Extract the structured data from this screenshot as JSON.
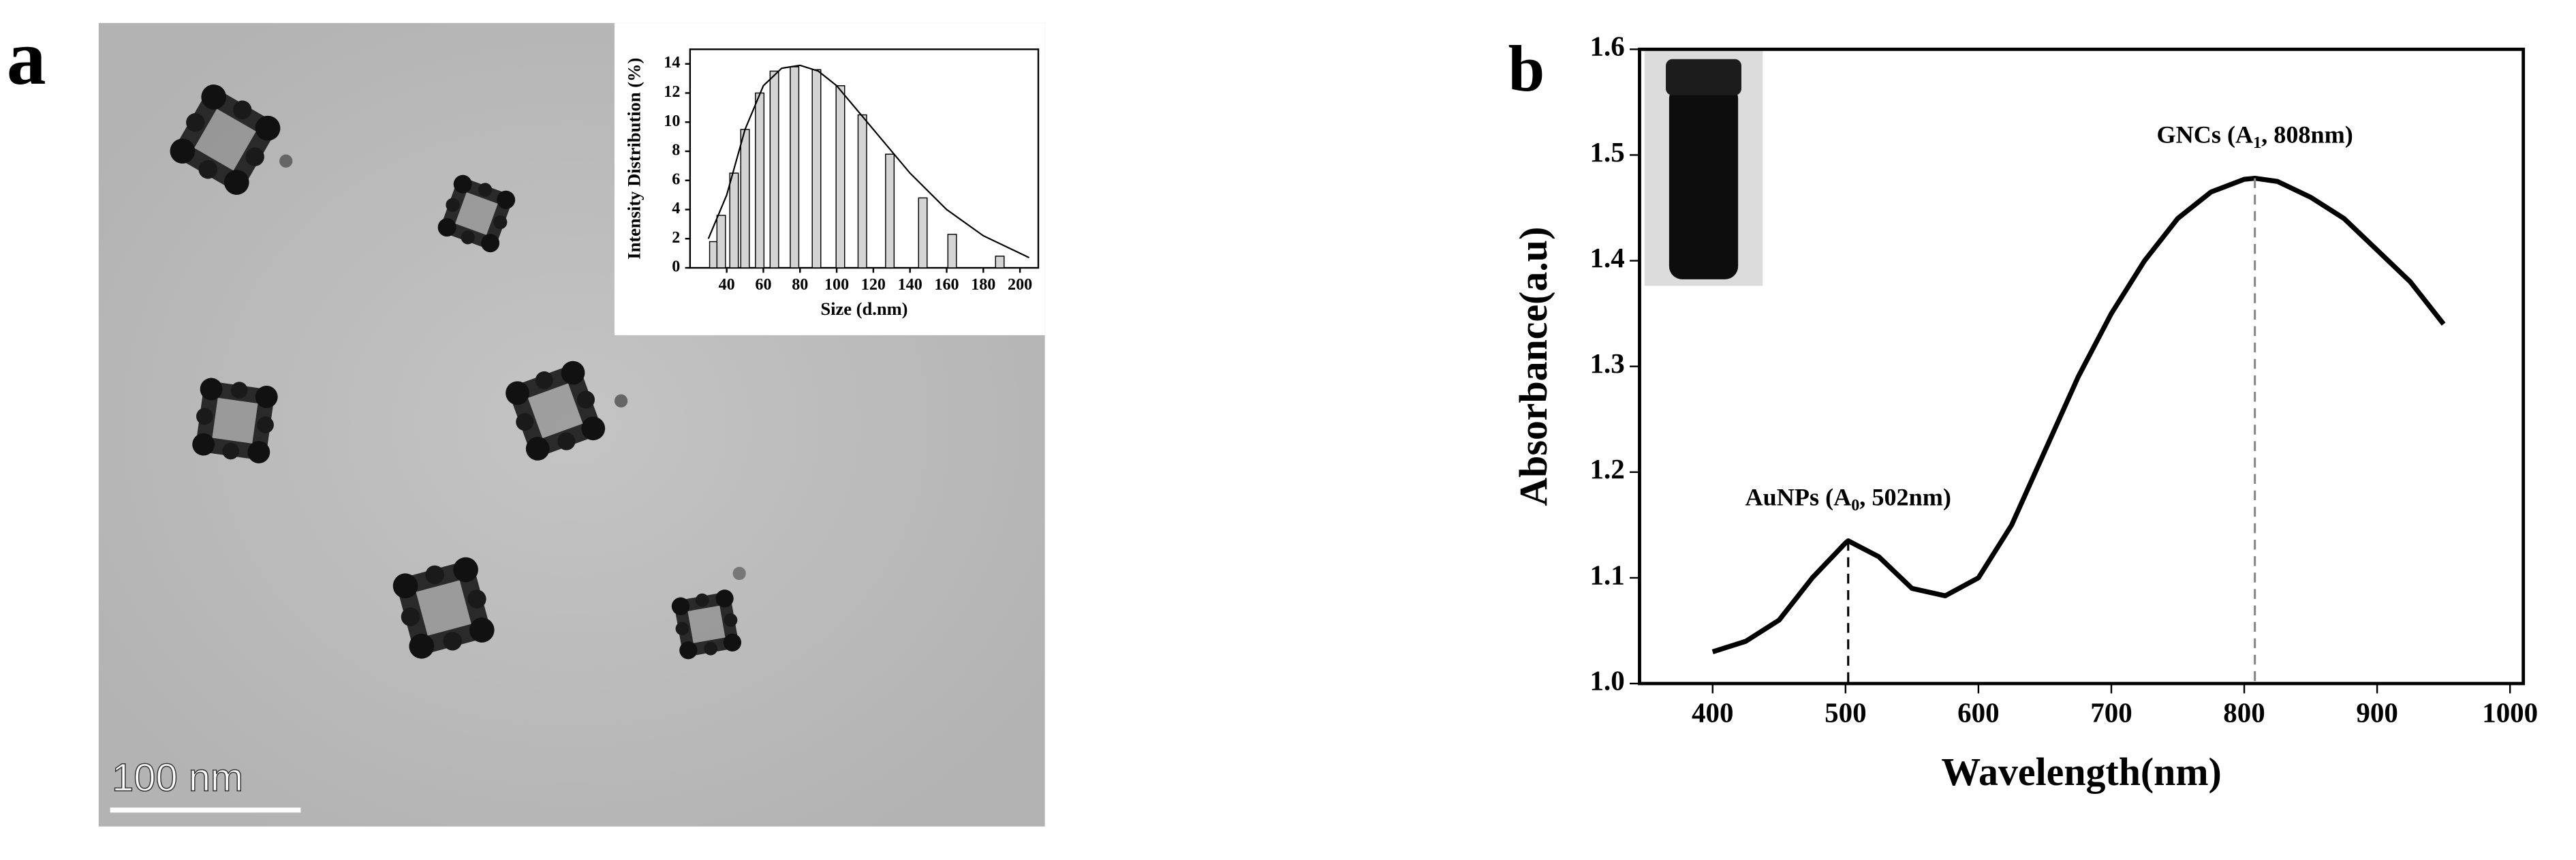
{
  "image": {
    "panel_label": "a",
    "scale_bar": "100 nm"
  },
  "chart_data": [
    {
      "type": "bar",
      "xlabel": "Size (d.nm)",
      "ylabel": "Intensity Distribution (%)",
      "x": [
        33,
        37,
        44,
        50,
        58,
        66,
        77,
        89,
        102,
        114,
        129,
        147,
        163,
        189
      ],
      "values": [
        1.8,
        3.6,
        6.5,
        9.5,
        12,
        13.5,
        13.8,
        13.6,
        12.5,
        10.5,
        7.8,
        4.8,
        2.3,
        0.8
      ],
      "color": "#d4d4d4",
      "curve": {
        "x": [
          30,
          40,
          50,
          60,
          70,
          80,
          90,
          100,
          120,
          140,
          160,
          180,
          200,
          205
        ],
        "values": [
          2,
          5,
          9.5,
          12.5,
          13.7,
          13.9,
          13.5,
          12.5,
          9.5,
          6.5,
          4,
          2.2,
          1,
          0.7
        ]
      },
      "xlim": [
        20,
        210
      ],
      "ylim": [
        0,
        15
      ],
      "xticks": [
        40,
        60,
        80,
        100,
        120,
        140,
        160,
        180,
        200
      ],
      "yticks": [
        0,
        2,
        4,
        6,
        8,
        10,
        12,
        14
      ]
    },
    {
      "type": "line",
      "panel_label": "b",
      "xlabel": "Wavelength(nm)",
      "ylabel": "Absorbance(a.u)",
      "x": [
        400,
        425,
        450,
        475,
        500,
        502,
        525,
        550,
        575,
        600,
        625,
        650,
        675,
        700,
        725,
        750,
        775,
        800,
        808,
        825,
        850,
        875,
        900,
        925,
        950
      ],
      "values": [
        1.03,
        1.04,
        1.06,
        1.1,
        1.133,
        1.135,
        1.12,
        1.09,
        1.083,
        1.1,
        1.15,
        1.22,
        1.29,
        1.35,
        1.4,
        1.44,
        1.465,
        1.477,
        1.478,
        1.475,
        1.46,
        1.44,
        1.41,
        1.38,
        1.34
      ],
      "color": "#000000",
      "peaks": [
        {
          "x": 502,
          "value": 1.135,
          "label": "AuNPs (A",
          "sub": "0",
          "rest": ", 502nm)",
          "color": "#000000"
        },
        {
          "x": 808,
          "value": 1.478,
          "label": "GNCs (A",
          "sub": "1",
          "rest": ", 808nm)",
          "color": "#888888"
        }
      ],
      "xlim": [
        345,
        1010
      ],
      "ylim": [
        1.0,
        1.6
      ],
      "xticks": [
        400,
        500,
        600,
        700,
        800,
        900,
        1000
      ],
      "yticks": [
        {
          "value": 1.0,
          "label": "1.0"
        },
        1.1,
        1.2,
        1.3,
        1.4,
        1.5,
        {
          "value": 1.6,
          "label": "1.6"
        }
      ]
    }
  ]
}
